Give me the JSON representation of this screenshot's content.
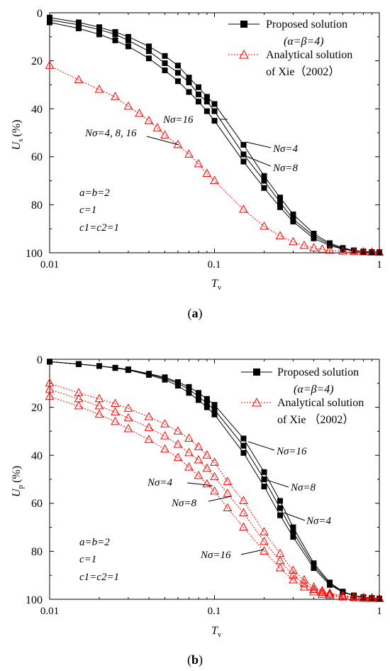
{
  "chart_data": [
    {
      "panel": "(a)",
      "panel_letter": "a",
      "type": "line",
      "xlabel": "T",
      "xlabel_sub": "v",
      "ylabel": "U",
      "ylabel_sub": "s",
      "ylabel_unit": "(%)",
      "x_scale": "log",
      "xlim": [
        0.01,
        1
      ],
      "ylim": [
        0,
        100
      ],
      "y_inverted": true,
      "x_ticks": [
        "0.01",
        "0.1",
        "1"
      ],
      "y_ticks": [
        "0",
        "20",
        "40",
        "60",
        "80",
        "100"
      ],
      "grid": false,
      "legend_position": "top-right",
      "legend": [
        {
          "label": "Proposed solution",
          "label2": "(α=β=4)",
          "marker": "filled-square",
          "color": "#000000"
        },
        {
          "label": "Analytical solution",
          "label2": "of Xie（2002）",
          "marker": "open-triangle",
          "color": "#ff0000"
        }
      ],
      "params": [
        "a=b=2",
        "c=1",
        "c1=c2=1"
      ],
      "annotations": [
        "Nσ=16",
        "Nσ=4, 8, 16",
        "Nσ=4",
        "Nσ=8"
      ],
      "series": [
        {
          "name": "Nσ=4",
          "group": "proposed",
          "x": [
            0.01,
            0.015,
            0.02,
            0.025,
            0.03,
            0.04,
            0.05,
            0.06,
            0.07,
            0.08,
            0.09,
            0.1,
            0.15,
            0.2,
            0.25,
            0.3,
            0.4,
            0.5,
            0.6,
            0.7,
            0.8,
            0.9,
            1.0
          ],
          "y": [
            2,
            4,
            6,
            8,
            10,
            14,
            18,
            22,
            27,
            31,
            35,
            38,
            55,
            68,
            77,
            84,
            92,
            96,
            98,
            99,
            99.5,
            99.7,
            99.8
          ]
        },
        {
          "name": "Nσ=8",
          "group": "proposed",
          "x": [
            0.01,
            0.015,
            0.02,
            0.025,
            0.03,
            0.04,
            0.05,
            0.06,
            0.07,
            0.08,
            0.09,
            0.1,
            0.15,
            0.2,
            0.25,
            0.3,
            0.4,
            0.5,
            0.6,
            0.7,
            0.8,
            0.9,
            1.0
          ],
          "y": [
            3,
            5,
            7,
            9,
            11.5,
            16,
            21,
            25,
            29,
            34,
            37,
            41,
            59,
            70,
            79,
            86,
            93,
            96.5,
            98.2,
            99,
            99.5,
            99.7,
            99.8
          ]
        },
        {
          "name": "Nσ=16",
          "group": "proposed",
          "x": [
            0.01,
            0.015,
            0.02,
            0.025,
            0.03,
            0.04,
            0.05,
            0.06,
            0.07,
            0.08,
            0.09,
            0.1,
            0.15,
            0.2,
            0.25,
            0.3,
            0.4,
            0.5,
            0.6,
            0.7,
            0.8,
            0.9,
            1.0
          ],
          "y": [
            4,
            6.5,
            9,
            11.5,
            14,
            19,
            24,
            28.5,
            33,
            37,
            41,
            45,
            62,
            73,
            81,
            87,
            94,
            97,
            98.5,
            99.2,
            99.6,
            99.8,
            99.9
          ]
        },
        {
          "name": "Nσ=4, 8, 16",
          "group": "analytical",
          "x": [
            0.01,
            0.015,
            0.02,
            0.025,
            0.03,
            0.035,
            0.04,
            0.045,
            0.05,
            0.06,
            0.07,
            0.08,
            0.09,
            0.1,
            0.15,
            0.2,
            0.25,
            0.3,
            0.35,
            0.4,
            0.45,
            0.5,
            0.6,
            0.7,
            0.8,
            0.9,
            1.0
          ],
          "y": [
            22,
            28,
            32,
            35,
            39,
            42,
            45,
            48,
            51,
            55,
            59,
            63,
            67,
            70,
            82,
            89,
            93,
            95.5,
            97,
            98,
            98.6,
            99,
            99.4,
            99.6,
            99.7,
            99.8,
            99.9
          ]
        }
      ]
    },
    {
      "panel": "(b)",
      "panel_letter": "b",
      "type": "line",
      "xlabel": "T",
      "xlabel_sub": "v",
      "ylabel": "U",
      "ylabel_sub": "p",
      "ylabel_unit": "(%)",
      "x_scale": "log",
      "xlim": [
        0.01,
        1
      ],
      "ylim": [
        0,
        100
      ],
      "y_inverted": true,
      "x_ticks": [
        "0.01",
        "0.1",
        "1"
      ],
      "y_ticks": [
        "0",
        "20",
        "40",
        "60",
        "80",
        "100"
      ],
      "grid": false,
      "legend_position": "top-right",
      "legend": [
        {
          "label": "Proposed solution",
          "label2": "(α=β=4)",
          "marker": "filled-square",
          "color": "#000000"
        },
        {
          "label": "Analytical solution",
          "label2": "of Xie （2002）",
          "marker": "open-triangle",
          "color": "#ff0000"
        }
      ],
      "params": [
        "a=b=2",
        "c=1",
        "c1=c2=1"
      ],
      "annotations": [
        "Nσ=16",
        "Nσ=8",
        "Nσ=4",
        "Nσ=4",
        "Nσ=8",
        "Nσ=16"
      ],
      "series": [
        {
          "name": "Nσ=16",
          "group": "proposed",
          "x": [
            0.01,
            0.015,
            0.02,
            0.025,
            0.03,
            0.04,
            0.05,
            0.06,
            0.07,
            0.08,
            0.09,
            0.1,
            0.15,
            0.2,
            0.25,
            0.3,
            0.4,
            0.5,
            0.6,
            0.7,
            0.8,
            0.9,
            1.0
          ],
          "y": [
            1,
            2,
            2.8,
            3.6,
            4.5,
            6.5,
            8.5,
            11,
            14,
            17,
            20,
            23,
            39,
            53,
            65,
            74,
            87,
            94,
            97,
            98.5,
            99.2,
            99.5,
            99.7
          ]
        },
        {
          "name": "Nσ=8",
          "group": "proposed",
          "x": [
            0.01,
            0.015,
            0.02,
            0.025,
            0.03,
            0.04,
            0.05,
            0.06,
            0.07,
            0.08,
            0.09,
            0.1,
            0.15,
            0.2,
            0.25,
            0.3,
            0.4,
            0.5,
            0.6,
            0.7,
            0.8,
            0.9,
            1.0
          ],
          "y": [
            1,
            2,
            2.8,
            3.6,
            4.3,
            6.2,
            8,
            10,
            12.5,
            15.5,
            18.5,
            21,
            36,
            50,
            62,
            72,
            86,
            93.5,
            97,
            98.5,
            99.2,
            99.5,
            99.7
          ]
        },
        {
          "name": "Nσ=4",
          "group": "proposed",
          "x": [
            0.01,
            0.015,
            0.02,
            0.025,
            0.03,
            0.04,
            0.05,
            0.06,
            0.07,
            0.08,
            0.09,
            0.1,
            0.15,
            0.2,
            0.25,
            0.3,
            0.4,
            0.5,
            0.6,
            0.7,
            0.8,
            0.9,
            1.0
          ],
          "y": [
            1,
            2,
            2.8,
            3.5,
            4.2,
            6,
            7.5,
            9.5,
            11.5,
            14,
            16.5,
            19,
            33,
            47,
            59,
            70,
            85,
            93,
            96.8,
            98.4,
            99.1,
            99.5,
            99.7
          ]
        },
        {
          "name": "Nσ=4",
          "group": "analytical",
          "x": [
            0.01,
            0.015,
            0.02,
            0.025,
            0.03,
            0.04,
            0.05,
            0.06,
            0.07,
            0.08,
            0.09,
            0.1,
            0.12,
            0.15,
            0.2,
            0.25,
            0.3,
            0.35,
            0.4,
            0.45,
            0.5,
            0.6,
            0.7,
            0.8,
            0.9,
            1.0
          ],
          "y": [
            10,
            14,
            16.5,
            18.5,
            20.5,
            24,
            27,
            30,
            33,
            36.5,
            40,
            43,
            51,
            59,
            72,
            81,
            88,
            92,
            95,
            96.5,
            97.5,
            98.5,
            99,
            99.3,
            99.5,
            99.7
          ]
        },
        {
          "name": "Nσ=8",
          "group": "analytical",
          "x": [
            0.01,
            0.015,
            0.02,
            0.025,
            0.03,
            0.04,
            0.05,
            0.06,
            0.07,
            0.08,
            0.09,
            0.1,
            0.12,
            0.15,
            0.2,
            0.25,
            0.3,
            0.35,
            0.4,
            0.45,
            0.5,
            0.6,
            0.7,
            0.8,
            0.9,
            1.0
          ],
          "y": [
            12.5,
            16.5,
            19.5,
            22,
            24.5,
            28.5,
            32,
            35.5,
            39,
            42,
            45.5,
            49,
            56,
            64,
            76,
            84,
            90,
            93.5,
            96,
            97.2,
            98,
            98.8,
            99.2,
            99.4,
            99.6,
            99.7
          ]
        },
        {
          "name": "Nσ=16",
          "group": "analytical",
          "x": [
            0.01,
            0.015,
            0.02,
            0.025,
            0.03,
            0.04,
            0.05,
            0.06,
            0.07,
            0.08,
            0.09,
            0.1,
            0.12,
            0.15,
            0.2,
            0.25,
            0.3,
            0.35,
            0.4,
            0.45,
            0.5,
            0.6,
            0.7,
            0.8,
            0.9,
            1.0
          ],
          "y": [
            15.5,
            19.5,
            23,
            26,
            29,
            33.5,
            37.5,
            41,
            45,
            48.5,
            52,
            55,
            62,
            70,
            80,
            87,
            92,
            95,
            97,
            98,
            98.6,
            99.1,
            99.4,
            99.6,
            99.7,
            99.8
          ]
        }
      ]
    }
  ]
}
